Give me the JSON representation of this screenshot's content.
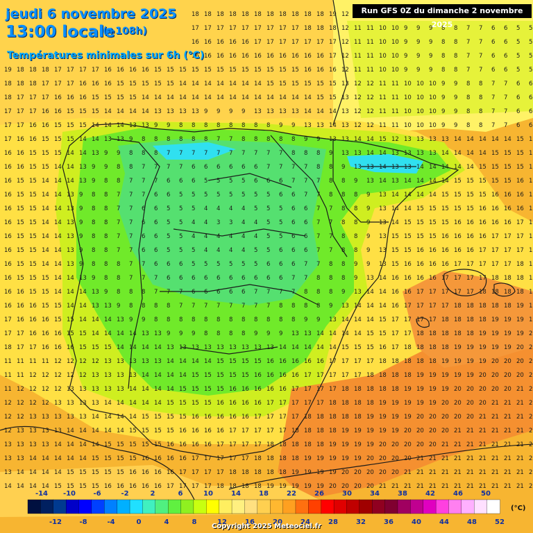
{
  "header": {
    "date": "jeudi 6 novembre 2025",
    "time": "13:00 locale",
    "lead": "(+108h)",
    "parameter": "Températures minimales sur 6h (°C)",
    "run": "Run GFS 0Z du dimanche 2 novembre 2025"
  },
  "legend": {
    "unit": "(°C)",
    "top_labels": [
      "-14",
      "-10",
      "-6",
      "-2",
      "2",
      "6",
      "10",
      "14",
      "18",
      "22",
      "26",
      "30",
      "34",
      "38",
      "42",
      "46",
      "50"
    ],
    "bottom_labels": [
      "-12",
      "-8",
      "-4",
      "0",
      "4",
      "8",
      "12",
      "16",
      "20",
      "24",
      "28",
      "32",
      "36",
      "40",
      "44",
      "48",
      "52"
    ],
    "colors": [
      "#001040",
      "#002060",
      "#003a90",
      "#0000c8",
      "#0000ff",
      "#0040ff",
      "#0080ff",
      "#00b0ff",
      "#20e0ff",
      "#40f0c0",
      "#50f080",
      "#60f040",
      "#90f020",
      "#c8ff10",
      "#ffff00",
      "#ffef60",
      "#fff080",
      "#ffe080",
      "#ffd050",
      "#ffb830",
      "#ffa020",
      "#ff7010",
      "#ff4000",
      "#ff0000",
      "#e00000",
      "#c00000",
      "#a00000",
      "#900020",
      "#800030",
      "#a00060",
      "#c00090",
      "#e000c0",
      "#ff40e0",
      "#ff80f0",
      "#ffb0ff",
      "#ffe0ff",
      "#ffffff"
    ]
  },
  "copyright": "Copyright 2025 Meteociel.fr"
}
